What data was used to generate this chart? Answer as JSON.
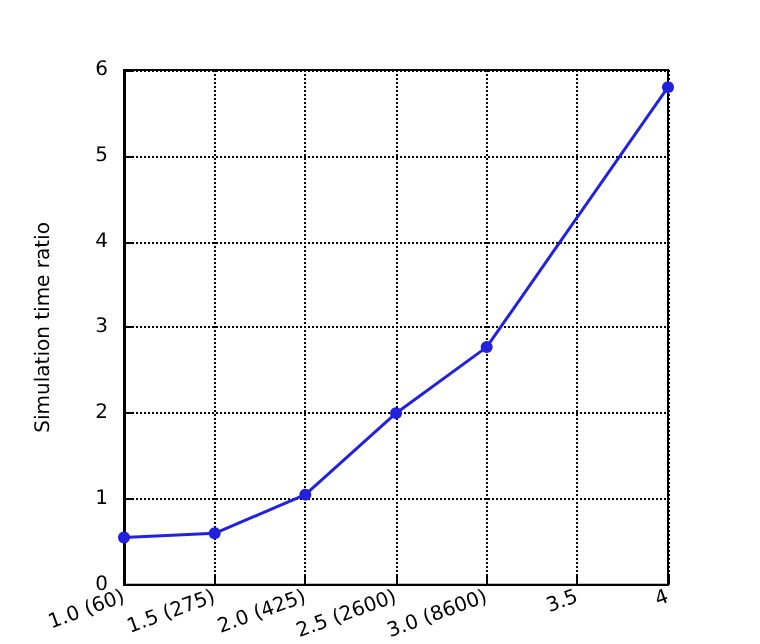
{
  "chart_data": {
    "type": "line",
    "ylabel": "Simulation time ratio",
    "x": [
      1.0,
      1.5,
      2.0,
      2.5,
      3.0,
      4.0
    ],
    "series": [
      {
        "color": "#2222dd",
        "values": [
          0.55,
          0.6,
          1.05,
          2.0,
          2.77,
          5.8
        ]
      }
    ],
    "xlim": [
      1,
      4
    ],
    "xticks": [
      {
        "value": 1,
        "label": "1.0 (60)"
      },
      {
        "value": 1.5,
        "label": "1.5 (275)"
      },
      {
        "value": 2,
        "label": "2.0 (425)"
      },
      {
        "value": 2.5,
        "label": "2.5 (2600)"
      },
      {
        "value": 3,
        "label": "3.0 (8600)"
      },
      {
        "value": 3.5,
        "label": "3.5"
      },
      {
        "value": 4,
        "label": "4"
      }
    ],
    "ylim": [
      0,
      6
    ],
    "yticks": [
      0,
      1,
      2,
      3,
      4,
      5,
      6
    ],
    "grid": true,
    "marker": "circle",
    "line_style": "solid"
  }
}
